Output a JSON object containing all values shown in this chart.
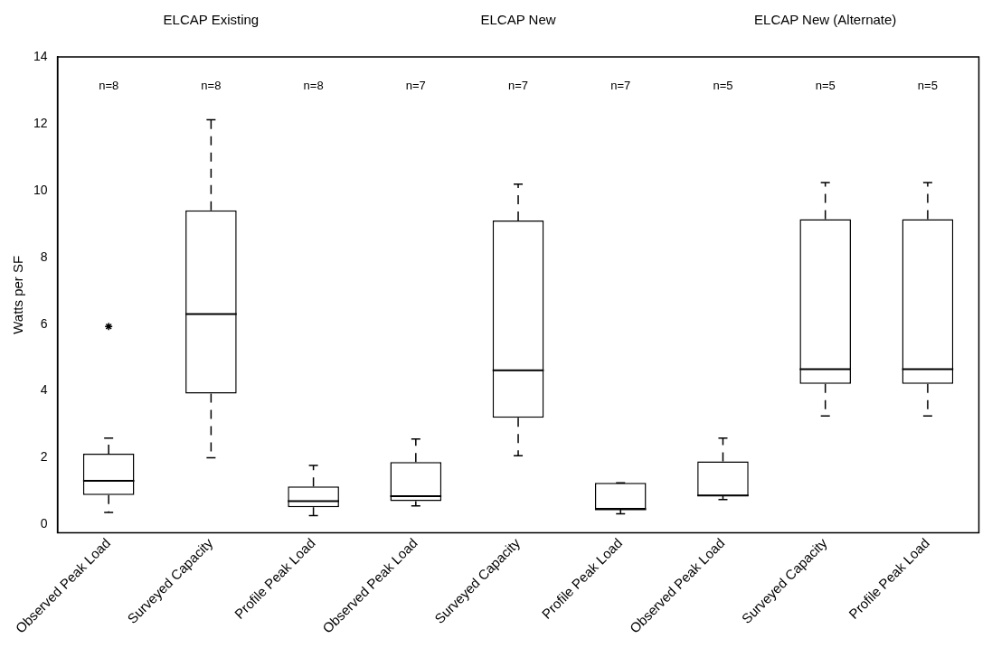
{
  "chart_data": {
    "type": "box",
    "ylabel": "Watts per SF",
    "ylim": [
      -0.25,
      14
    ],
    "yticks": [
      0,
      2,
      4,
      6,
      8,
      10,
      12,
      14
    ],
    "grid": false,
    "legend": false,
    "categories": [
      "Observed Peak Load",
      "Surveyed Capacity",
      "Profile Peak Load",
      "Observed Peak Load",
      "Surveyed Capacity",
      "Profile Peak Load",
      "Observed Peak Load",
      "Surveyed Capacity",
      "Profile Peak Load"
    ],
    "series": [
      {
        "color": "#000000",
        "boxes": [
          {
            "low": 0.36,
            "q1": 0.88,
            "median": 1.31,
            "q3": 2.12,
            "high": 2.59,
            "outliers": [
              5.93
            ]
          },
          {
            "low": 2.0,
            "q1": 3.92,
            "median": 6.3,
            "q3": 9.41,
            "high": 12.12
          },
          {
            "low": 0.27,
            "q1": 0.52,
            "median": 0.7,
            "q3": 1.14,
            "high": 1.77
          },
          null,
          null,
          null,
          null,
          null,
          null
        ]
      },
      {
        "color": "#000000",
        "boxes": [
          null,
          null,
          null,
          {
            "low": 0.56,
            "q1": 0.7,
            "median": 0.85,
            "q3": 1.87,
            "high": 2.56
          },
          {
            "low": 2.06,
            "q1": 3.2,
            "median": 4.62,
            "q3": 9.1,
            "high": 10.19
          },
          {
            "low": 0.32,
            "q1": 0.46,
            "median": 0.46,
            "q3": 1.25,
            "high": 1.25
          },
          null,
          null,
          null
        ]
      },
      {
        "color": "#000000",
        "boxes": [
          null,
          null,
          null,
          null,
          null,
          null,
          {
            "low": 0.75,
            "q1": 0.85,
            "median": 0.87,
            "q3": 1.89,
            "high": 2.59
          },
          {
            "low": 3.25,
            "q1": 4.21,
            "median": 4.65,
            "q3": 9.14,
            "high": 10.24
          },
          {
            "low": 3.25,
            "q1": 4.21,
            "median": 4.65,
            "q3": 9.14,
            "high": 10.24
          }
        ]
      }
    ],
    "annotations": [
      "ELCAP Existing",
      "ELCAP New",
      "ELCAP New (Alternate)",
      "n=8",
      "n=8",
      "n=8",
      "n=7",
      "n=7",
      "n=7",
      "n=5",
      "n=5",
      "n=5"
    ]
  }
}
